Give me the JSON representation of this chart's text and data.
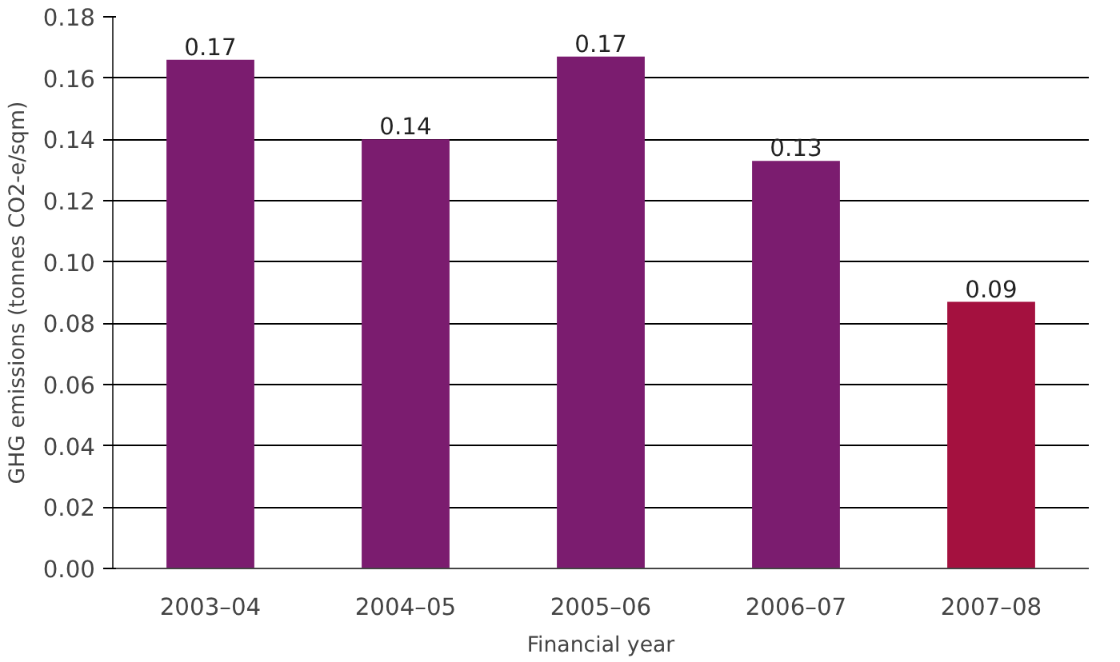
{
  "chart_data": {
    "type": "bar",
    "xlabel": "Financial year",
    "ylabel": "GHG emissions (tonnes CO2-e/sqm)",
    "categories": [
      "2003–04",
      "2004–05",
      "2005–06",
      "2006–07",
      "2007–08"
    ],
    "values": [
      0.166,
      0.14,
      0.167,
      0.133,
      0.087
    ],
    "value_labels": [
      "0.17",
      "0.14",
      "0.17",
      "0.13",
      "0.09"
    ],
    "colors": [
      "#7b1c6f",
      "#7b1c6f",
      "#7b1c6f",
      "#7b1c6f",
      "#a4113f"
    ],
    "ylim": [
      0,
      0.18
    ],
    "yticks": [
      {
        "value": 0,
        "label": "0.00"
      },
      {
        "value": 0.02,
        "label": "0.02"
      },
      {
        "value": 0.04,
        "label": "0.04"
      },
      {
        "value": 0.06,
        "label": "0.06"
      },
      {
        "value": 0.08,
        "label": "0.08"
      },
      {
        "value": 0.1,
        "label": "0.10"
      },
      {
        "value": 0.12,
        "label": "0.12"
      },
      {
        "value": 0.14,
        "label": "0.14"
      },
      {
        "value": 0.16,
        "label": "0.16"
      },
      {
        "value": 0.18,
        "label": "0.18"
      }
    ],
    "grid": "y"
  }
}
